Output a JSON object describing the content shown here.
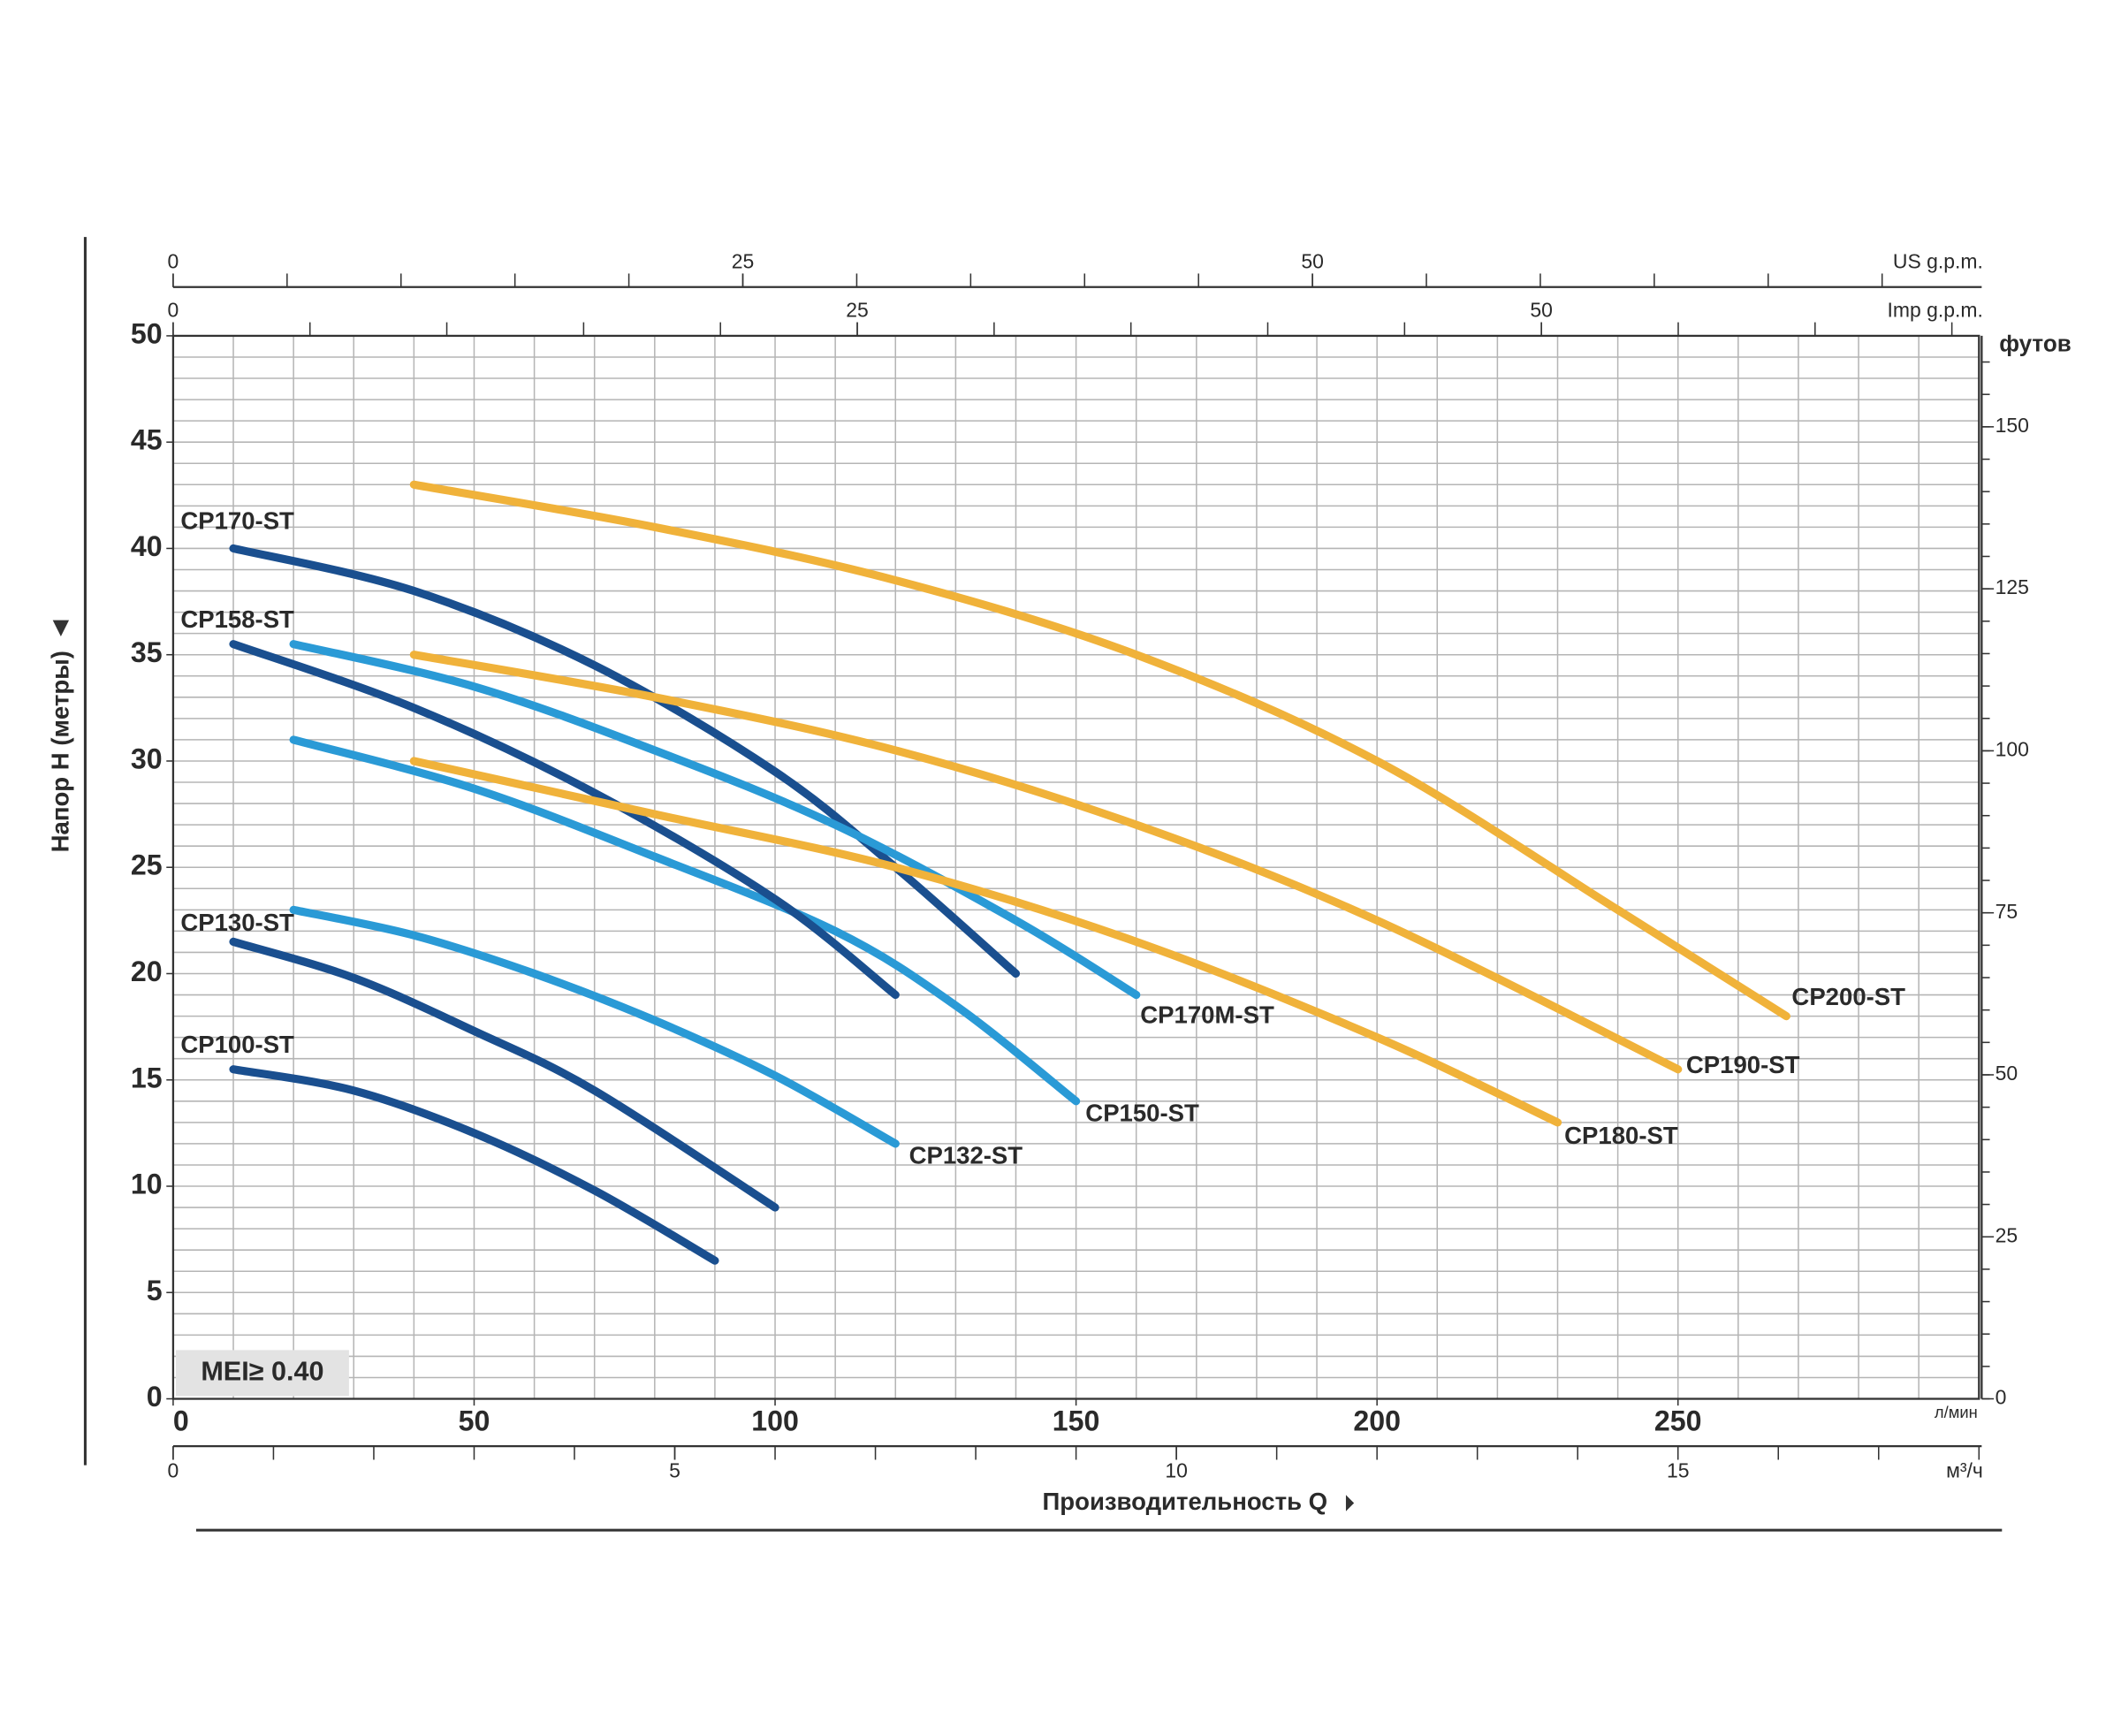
{
  "chart_data": {
    "type": "line",
    "x_label": "Производительность Q",
    "x_unit": "л/мин",
    "y_label": "Напор H (метры)",
    "annotation": "MEI≥ 0.40",
    "xlim": [
      0,
      300
    ],
    "xticks": [
      0,
      50,
      100,
      150,
      200,
      250
    ],
    "ylim": [
      0,
      50
    ],
    "yticks": [
      0,
      5,
      10,
      15,
      20,
      25,
      30,
      35,
      40,
      45,
      50
    ],
    "grid": true,
    "xgrid": [
      0,
      10,
      20,
      30,
      40,
      50,
      60,
      70,
      80,
      90,
      100,
      110,
      120,
      130,
      140,
      150,
      160,
      170,
      180,
      190,
      200,
      210,
      220,
      230,
      240,
      250,
      260,
      270,
      280,
      290,
      300
    ],
    "ygrid": [
      0,
      1,
      2,
      3,
      4,
      5,
      6,
      7,
      8,
      9,
      10,
      11,
      12,
      13,
      14,
      15,
      16,
      17,
      18,
      19,
      20,
      21,
      22,
      23,
      24,
      25,
      26,
      27,
      28,
      29,
      30,
      31,
      32,
      33,
      34,
      35,
      36,
      37,
      38,
      39,
      40,
      41,
      42,
      43,
      44,
      45,
      46,
      47,
      48,
      49,
      50
    ],
    "secondary_axes": [
      {
        "label": "US g.p.m.",
        "position": "top",
        "lim": [
          0,
          79.25
        ],
        "ticks": [
          0,
          25,
          50
        ],
        "minor_ticks": [
          0,
          5,
          10,
          15,
          20,
          25,
          30,
          35,
          40,
          45,
          50,
          55,
          60,
          65,
          70,
          75
        ]
      },
      {
        "label": "Imp g.p.m.",
        "position": "top",
        "lim": [
          0,
          65.99
        ],
        "ticks": [
          0,
          25,
          50
        ],
        "minor_ticks": [
          0,
          5,
          10,
          15,
          20,
          25,
          30,
          35,
          40,
          45,
          50,
          55,
          60,
          65
        ]
      },
      {
        "label": "м³/ч",
        "position": "bottom",
        "lim": [
          0,
          18
        ],
        "ticks": [
          0,
          5,
          10,
          15
        ],
        "minor_ticks": [
          0,
          1,
          2,
          3,
          4,
          5,
          6,
          7,
          8,
          9,
          10,
          11,
          12,
          13,
          14,
          15,
          16,
          17,
          18
        ]
      },
      {
        "label": "футов",
        "position": "right",
        "lim": [
          0,
          164.04
        ],
        "ticks": [
          0,
          25,
          50,
          75,
          100,
          125,
          150
        ],
        "minor_ticks": [
          0,
          5,
          10,
          15,
          20,
          25,
          30,
          35,
          40,
          45,
          50,
          55,
          60,
          65,
          70,
          75,
          80,
          85,
          90,
          95,
          100,
          105,
          110,
          115,
          120,
          125,
          130,
          135,
          140,
          145,
          150,
          155,
          160
        ]
      }
    ],
    "series": [
      {
        "name": "CP100-ST",
        "color": "#1a4f8f",
        "x": [
          10,
          30,
          50,
          70,
          90
        ],
        "values": [
          15.5,
          14.5,
          12.5,
          9.8,
          6.5
        ]
      },
      {
        "name": "CP130-ST",
        "color": "#1a4f8f",
        "x": [
          10,
          30,
          50,
          70,
          100
        ],
        "values": [
          21.5,
          19.8,
          17.3,
          14.5,
          9
        ]
      },
      {
        "name": "CP132-ST",
        "color": "#2a9ad6",
        "x": [
          20,
          40,
          60,
          80,
          100,
          120
        ],
        "values": [
          23,
          21.8,
          20,
          17.8,
          15.2,
          12
        ]
      },
      {
        "name": "CP150-ST",
        "color": "#2a9ad6",
        "x": [
          20,
          50,
          80,
          110,
          130,
          150
        ],
        "values": [
          31,
          28.7,
          25.5,
          22,
          18.5,
          14
        ]
      },
      {
        "name": "CP158-ST",
        "color": "#1a4f8f",
        "x": [
          10,
          40,
          70,
          100,
          120
        ],
        "values": [
          35.5,
          32.5,
          28.5,
          23.5,
          19
        ]
      },
      {
        "name": "CP170-ST",
        "color": "#1a4f8f",
        "x": [
          10,
          40,
          70,
          100,
          120,
          140
        ],
        "values": [
          40,
          38,
          34.5,
          29.5,
          25,
          20
        ]
      },
      {
        "name": "CP170M-ST",
        "color": "#2a9ad6",
        "x": [
          20,
          50,
          80,
          110,
          140,
          160
        ],
        "values": [
          35.5,
          33.5,
          30.5,
          27,
          22.5,
          19
        ]
      },
      {
        "name": "CP180-ST",
        "color": "#f0b23a",
        "x": [
          40,
          80,
          120,
          160,
          200,
          230
        ],
        "values": [
          30,
          27.5,
          25,
          21.5,
          17,
          13
        ]
      },
      {
        "name": "CP190-ST",
        "color": "#f0b23a",
        "x": [
          40,
          80,
          120,
          160,
          200,
          250
        ],
        "values": [
          35,
          33,
          30.5,
          27,
          22.5,
          15.5
        ]
      },
      {
        "name": "CP200-ST",
        "color": "#f0b23a",
        "x": [
          40,
          80,
          120,
          160,
          200,
          240,
          268
        ],
        "values": [
          43,
          41,
          38.5,
          35,
          30,
          23,
          18
        ]
      }
    ]
  }
}
